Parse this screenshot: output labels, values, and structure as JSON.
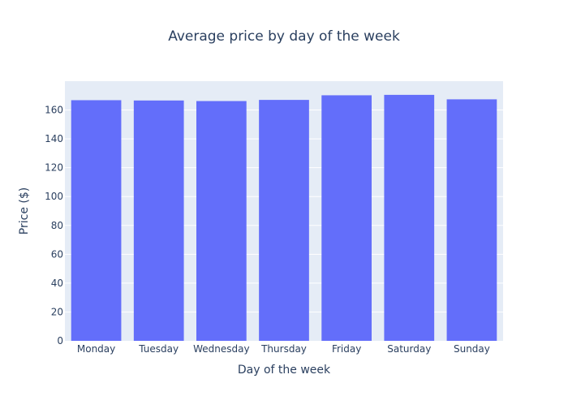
{
  "chart_data": {
    "type": "bar",
    "title": "Average price by day of the week",
    "xlabel": "Day of the week",
    "ylabel": "Price ($)",
    "categories": [
      "Monday",
      "Tuesday",
      "Wednesday",
      "Thursday",
      "Friday",
      "Saturday",
      "Sunday"
    ],
    "values": [
      166.8,
      166.6,
      166.2,
      167.0,
      170.2,
      170.5,
      167.4
    ],
    "ylim": [
      0,
      180
    ],
    "yticks": [
      0,
      20,
      40,
      60,
      80,
      100,
      120,
      140,
      160
    ],
    "grid": true,
    "legend": "none",
    "colors": {
      "bar": "#636efa",
      "plot_background": "#e5ecf6",
      "grid": "#ffffff",
      "text": "#2a3f5f"
    }
  }
}
